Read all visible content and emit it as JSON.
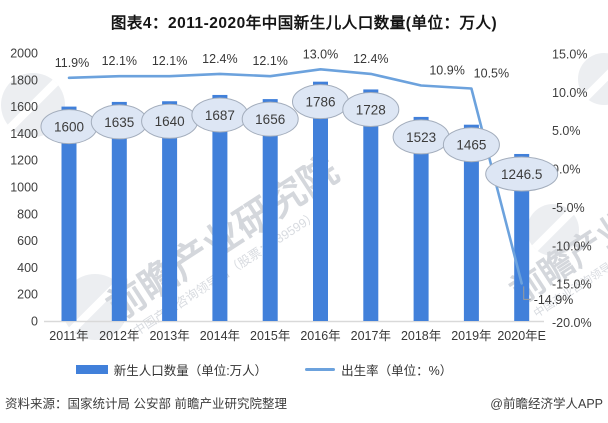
{
  "title": "图表4：2011-2020年中国新生儿人口数量(单位：万人)",
  "chart_data": {
    "type": "bar",
    "combo": "bar+line",
    "categories": [
      "2011年",
      "2012年",
      "2013年",
      "2014年",
      "2015年",
      "2016年",
      "2017年",
      "2018年",
      "2019年",
      "2020年E"
    ],
    "series": [
      {
        "name": "新生人口数量（单位:万人）",
        "type": "bar",
        "axis": "left",
        "color": "#4180da",
        "values": [
          1600,
          1635,
          1640,
          1687,
          1656,
          1786,
          1728,
          1523,
          1465,
          1246.5
        ],
        "labels": [
          "1600",
          "1635",
          "1640",
          "1687",
          "1656",
          "1786",
          "1728",
          "1523",
          "1465",
          "1246.5"
        ]
      },
      {
        "name": "出生率（单位：%）",
        "type": "line",
        "axis": "right",
        "color": "#6ca2dd",
        "values": [
          11.9,
          12.1,
          12.1,
          12.4,
          12.1,
          13.0,
          12.4,
          10.9,
          10.5,
          -14.9
        ],
        "labels": [
          "11.9%",
          "12.1%",
          "12.1%",
          "12.4%",
          "12.1%",
          "13.0%",
          "12.4%",
          "10.9%",
          "10.5%",
          "-14.9%"
        ]
      }
    ],
    "left_axis": {
      "min": 0,
      "max": 2000,
      "step": 200,
      "tick_labels": [
        "2000",
        "1800",
        "1600",
        "1400",
        "1200",
        "1000",
        "800",
        "600",
        "400",
        "200",
        "0"
      ]
    },
    "right_axis": {
      "min": -20,
      "max": 15,
      "step": 5,
      "tick_labels": [
        "15.0%",
        "10.0%",
        "5.0%",
        "0.0%",
        "-5.0%",
        "-10.0%",
        "-15.0%",
        "-20.0%"
      ]
    },
    "grid": false,
    "legend_position": "bottom",
    "value_bubble": {
      "fill": "#dde6f4",
      "stroke": "#a3adbc",
      "text_color": "#3c3c3c"
    }
  },
  "legend": {
    "items": [
      {
        "label": "新生人口数量（单位:万人）",
        "swatch": "bar",
        "color": "#4180da"
      },
      {
        "label": "出生率（单位：%）",
        "swatch": "line",
        "color": "#6ca2dd"
      }
    ]
  },
  "footer": {
    "source": "资料来源：国家统计局 公安部 前瞻产业研究院整理",
    "credit": "@前瞻经济学人APP"
  },
  "watermark": {
    "text": "前瞻产业研究院",
    "subtext": "中国产业咨询领导者（股票：839599）"
  }
}
